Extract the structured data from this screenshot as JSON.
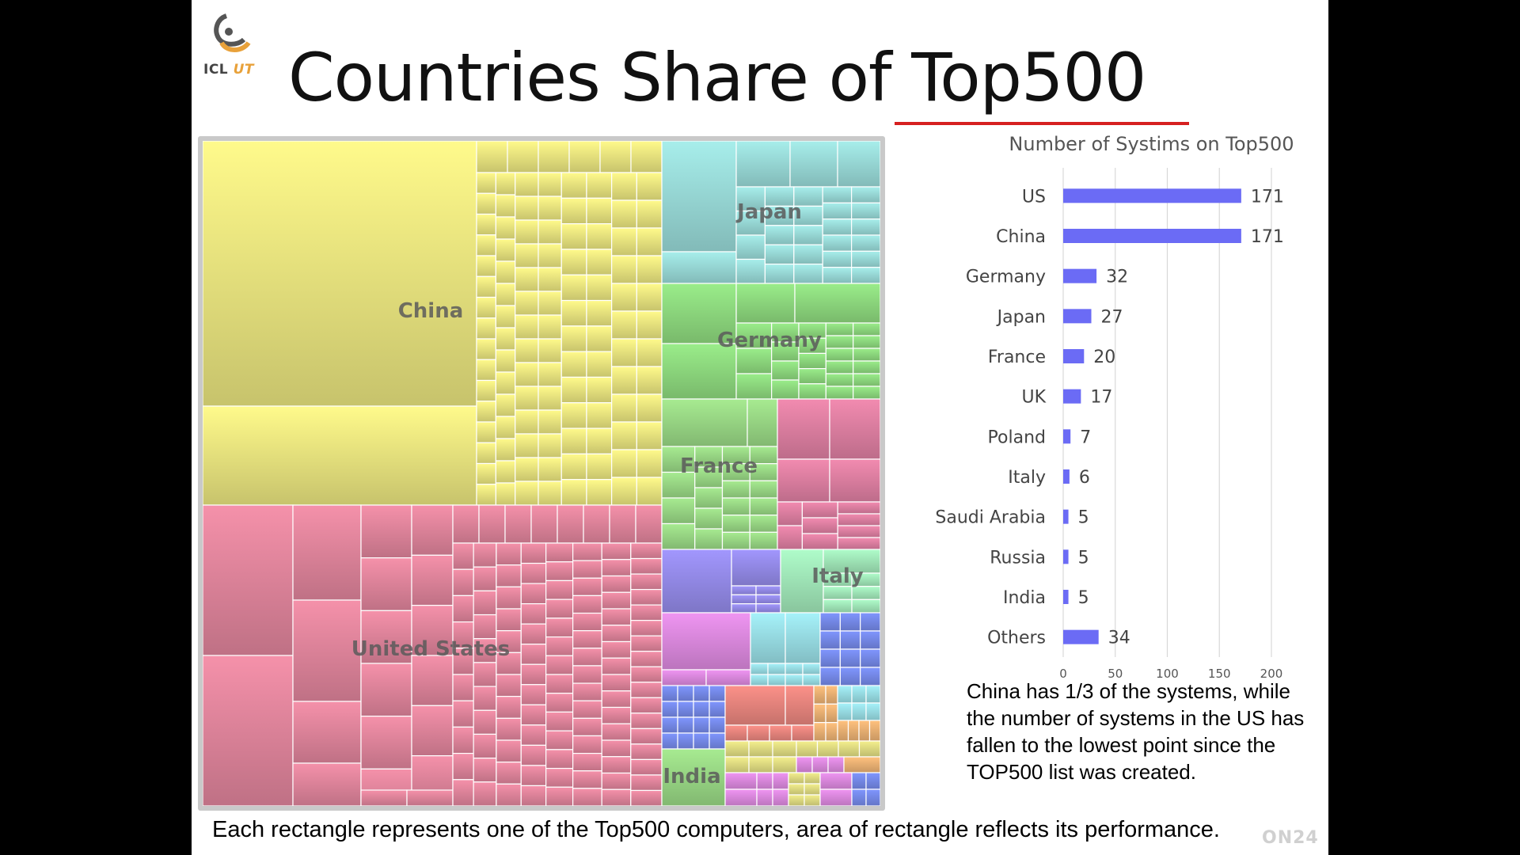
{
  "slide": {
    "title": "Countries Share of Top500",
    "logo_text": "ICL",
    "logo_text_accent": "UT",
    "note": "China has 1/3 of the systems, while the number of systems in the US has fallen to the lowest point since the TOP500 list was created.",
    "caption": "Each rectangle represents one of the Top500 computers, area of rectangle reflects its performance.",
    "watermark": "ON24",
    "underline_color": "#d62020"
  },
  "treemap": {
    "labels": {
      "china": "China",
      "us": "United States",
      "japan": "Japan",
      "germany": "Germany",
      "france": "France",
      "italy": "Italy",
      "india": "India"
    },
    "colors": {
      "china": "#f3ee84",
      "us": "#e98aa2",
      "japan": "#9fe3e0",
      "germany": "#93e283",
      "france": "#9fe08a",
      "uk": "#e684a8",
      "italy": "#a7f0c0",
      "poland": "#9a90f2",
      "saudi": "#e48ee6",
      "russia": "#9ee6ee",
      "other_blue": "#7a8ff2",
      "other_red": "#f08a82",
      "other_yellow": "#e8e486",
      "other_orange": "#f4b878"
    }
  },
  "chart_data": {
    "type": "bar",
    "orientation": "horizontal",
    "title": "Number of Systims on Top500",
    "categories": [
      "US",
      "China",
      "Germany",
      "Japan",
      "France",
      "UK",
      "Poland",
      "Italy",
      "Saudi Arabia",
      "Russia",
      "India",
      "Others"
    ],
    "values": [
      171,
      171,
      32,
      27,
      20,
      17,
      7,
      6,
      5,
      5,
      5,
      34
    ],
    "xlim": [
      0,
      200
    ],
    "xticks": [
      0,
      50,
      100,
      150,
      200
    ],
    "grid": true,
    "legend": "none",
    "bar_color": "#6b6bf5",
    "data_labels": true
  }
}
